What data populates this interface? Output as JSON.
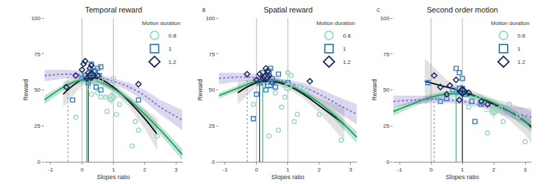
{
  "chart_data": [
    {
      "type": "scatter",
      "title": "Temporal reward",
      "x_label": "Slopes ratio",
      "y_label": "Reward",
      "xlim": [
        -1.2,
        3.2
      ],
      "ylim": [
        0,
        100
      ],
      "xticks": [
        -1,
        0,
        1,
        2,
        3
      ],
      "yticks": [
        0,
        25,
        50,
        75,
        100
      ],
      "grid": false,
      "legend": "top right",
      "legend_title": "Motion duration",
      "series": [
        {
          "name": "0.8",
          "color": "#9fd8c4",
          "marker": "circle",
          "x": [
            1.0,
            0.9,
            1.2,
            0.8,
            0.6,
            0.5,
            1.1,
            -0.2,
            1.6,
            0.4,
            0.3,
            1.8,
            1.7,
            2.4,
            0.6,
            0.75,
            1.0,
            0.2
          ],
          "values": [
            45,
            43,
            40,
            35,
            45,
            48,
            33,
            31,
            11,
            55,
            47,
            22,
            28,
            18,
            57,
            45,
            58,
            52
          ],
          "mean": {
            "x": 0.95,
            "y": 45,
            "x_error": 0.25,
            "y_error": 5
          }
        },
        {
          "name": "1",
          "color": "#3f86c4",
          "marker": "square",
          "x": [
            -0.3,
            0.5,
            0.6,
            0.3,
            0.0,
            0.2,
            0.4,
            0.45,
            0.6,
            0.55,
            1.8,
            0.3,
            0.1
          ],
          "values": [
            43,
            65,
            66,
            62,
            58,
            55,
            63,
            52,
            50,
            60,
            43,
            68,
            60
          ],
          "mean": {
            "x": 0.35,
            "y": 62,
            "x_error": 0.1,
            "y_error": 3
          }
        },
        {
          "name": "1.2",
          "color": "#1b2a5e",
          "marker": "diamond",
          "x": [
            -0.5,
            -0.2,
            0.1,
            0.2,
            0.3,
            0.05,
            0.0,
            0.4,
            1.8,
            0.15,
            0.5,
            0.25
          ],
          "values": [
            52,
            60,
            70,
            62,
            67,
            68,
            64,
            63,
            54,
            58,
            60,
            65
          ],
          "mean": {
            "x": 0.3,
            "y": 60,
            "x_error": 0.1,
            "y_error": 3
          }
        }
      ],
      "curves": [
        {
          "color": "#000000",
          "line_style": "solid",
          "x": [
            -0.6,
            0,
            0.5,
            1,
            1.5,
            2,
            2.4
          ],
          "values": [
            47,
            57,
            58,
            52,
            42,
            30,
            19
          ],
          "lower": [
            38,
            53,
            55,
            49,
            38,
            23,
            8
          ],
          "upper": [
            56,
            61,
            61,
            55,
            46,
            37,
            30
          ]
        },
        {
          "color": "#1a9e5f",
          "line_style": "solid",
          "x": [
            -1.2,
            -0.5,
            0,
            0.5,
            1,
            1.5,
            2,
            2.5,
            3.2
          ],
          "values": [
            43,
            53,
            57,
            56,
            51,
            43,
            33,
            22,
            5
          ],
          "lower": [
            40,
            51,
            55,
            54,
            49,
            41,
            30,
            19,
            1
          ],
          "upper": [
            46,
            55,
            59,
            58,
            53,
            45,
            36,
            25,
            9
          ]
        },
        {
          "color": "#7b6fc4",
          "line_style": "dot",
          "x": [
            -1.2,
            -0.5,
            0,
            0.5,
            1,
            1.5,
            2,
            2.5,
            3.2
          ],
          "values": [
            60,
            61,
            60.5,
            59,
            56,
            52,
            46,
            38,
            29
          ],
          "lower": [
            56,
            58,
            58,
            57,
            54,
            49,
            42,
            33,
            22
          ],
          "upper": [
            64,
            64,
            63,
            61,
            58,
            55,
            50,
            43,
            36
          ]
        }
      ],
      "vlines": [
        {
          "x": 0,
          "y_end": 100,
          "color": "#b3b3b3",
          "line_style": "solid"
        },
        {
          "x": 1,
          "y_end": 100,
          "color": "#b3b3b3",
          "line_style": "solid"
        },
        {
          "x": -0.45,
          "y_end": 61,
          "color": "#888888",
          "line_style": "dot"
        },
        {
          "x": 0.2,
          "y_end": 58,
          "color": "#000000",
          "line_style": "solid"
        },
        {
          "x": 0.15,
          "y_end": 57,
          "color": "#1a9e5f",
          "line_style": "solid"
        }
      ]
    },
    {
      "type": "scatter",
      "title": "Spatial reward",
      "panel": "B",
      "x_label": "Slopes ratio",
      "y_label": "Reward",
      "xlim": [
        -1.2,
        3.2
      ],
      "ylim": [
        0,
        100
      ],
      "xticks": [
        -1,
        0,
        1,
        2,
        3
      ],
      "yticks": [
        0,
        25,
        50,
        75,
        100
      ],
      "grid": false,
      "legend": "top right",
      "legend_title": "Motion duration",
      "series": [
        {
          "name": "0.8",
          "color": "#9fd8c4",
          "marker": "circle",
          "x": [
            1.0,
            1.1,
            0.9,
            0.5,
            -0.1,
            1.2,
            1.3,
            0.7,
            1.6,
            0.4,
            0.8,
            1.4,
            2.0,
            2.7,
            0.6
          ],
          "values": [
            62,
            60,
            45,
            55,
            40,
            28,
            33,
            22,
            50,
            18,
            38,
            52,
            33,
            15,
            48
          ],
          "mean": {
            "x": 1.0,
            "y": 52,
            "x_error": 0.2,
            "y_error": 5
          }
        },
        {
          "name": "1",
          "color": "#3f86c4",
          "marker": "square",
          "x": [
            -0.1,
            0.0,
            0.2,
            0.4,
            0.5,
            0.6,
            0.3,
            0.7,
            0.1,
            1.0,
            0.45
          ],
          "values": [
            30,
            47,
            62,
            63,
            58,
            52,
            50,
            61,
            55,
            55,
            65
          ],
          "mean": {
            "x": 0.4,
            "y": 54,
            "x_error": 0.1,
            "y_error": 3
          }
        },
        {
          "name": "1.2",
          "color": "#1b2a5e",
          "marker": "diamond",
          "x": [
            -0.3,
            0.1,
            0.3,
            0.4,
            0.2,
            0.5,
            0.0,
            0.35,
            1.7
          ],
          "values": [
            61,
            61,
            65,
            60,
            58,
            55,
            57,
            63,
            56
          ],
          "mean": {
            "x": 0.3,
            "y": 59,
            "x_error": 0.1,
            "y_error": 3
          }
        }
      ],
      "curves": [
        {
          "color": "#000000",
          "line_style": "solid",
          "x": [
            -0.6,
            0,
            0.5,
            1,
            1.5,
            2,
            2.5,
            2.8
          ],
          "values": [
            48,
            55,
            56,
            53,
            47,
            39,
            31,
            26
          ],
          "lower": [
            40,
            52,
            54,
            51,
            44,
            34,
            22,
            14
          ],
          "upper": [
            56,
            58,
            58,
            55,
            50,
            44,
            40,
            38
          ]
        },
        {
          "color": "#1a9e5f",
          "line_style": "solid",
          "x": [
            -1.2,
            -0.5,
            0,
            0.5,
            1,
            1.5,
            2,
            2.5,
            3.2
          ],
          "values": [
            46,
            52,
            56,
            57,
            54,
            48,
            41,
            32,
            17
          ],
          "lower": [
            44,
            50,
            54,
            55,
            52,
            46,
            39,
            29,
            13
          ],
          "upper": [
            48,
            54,
            58,
            59,
            56,
            50,
            43,
            35,
            21
          ]
        },
        {
          "color": "#7b6fc4",
          "line_style": "dot",
          "x": [
            -1.2,
            -0.5,
            0,
            0.5,
            1,
            1.5,
            2,
            2.5,
            3.2
          ],
          "values": [
            58,
            59,
            58.5,
            57.5,
            55,
            52,
            47,
            41,
            33
          ],
          "lower": [
            54,
            56,
            56,
            55.5,
            53,
            49,
            43,
            36,
            26
          ],
          "upper": [
            62,
            62,
            61,
            59.5,
            57,
            55,
            51,
            46,
            40
          ]
        }
      ],
      "vlines": [
        {
          "x": 0,
          "y_end": 100,
          "color": "#b3b3b3",
          "line_style": "solid"
        },
        {
          "x": 1,
          "y_end": 100,
          "color": "#b3b3b3",
          "line_style": "solid"
        },
        {
          "x": -0.3,
          "y_end": 59,
          "color": "#888888",
          "line_style": "dot"
        },
        {
          "x": 0.1,
          "y_end": 55,
          "color": "#000000",
          "line_style": "solid"
        },
        {
          "x": 0.2,
          "y_end": 56,
          "color": "#1a9e5f",
          "line_style": "solid"
        }
      ]
    },
    {
      "type": "scatter",
      "title": "Second order motion",
      "panel": "C",
      "x_label": "Slopes ratio",
      "y_label": "Reward",
      "xlim": [
        -1.2,
        3.2
      ],
      "ylim": [
        0,
        100
      ],
      "xticks": [
        -1,
        0,
        1,
        2,
        3
      ],
      "yticks": [
        0,
        25,
        50,
        75,
        100
      ],
      "grid": false,
      "legend": "top right",
      "legend_title": "Motion duration",
      "series": [
        {
          "name": "0.8",
          "color": "#9fd8c4",
          "marker": "circle",
          "x": [
            1.5,
            2.0,
            1.8,
            2.3,
            2.5,
            1.6,
            2.2,
            3.0,
            1.2,
            2.8
          ],
          "values": [
            45,
            35,
            20,
            28,
            40,
            42,
            37,
            14,
            38,
            32
          ],
          "mean": {
            "x": 2.0,
            "y": 35,
            "x_error": 0.3,
            "y_error": 5
          }
        },
        {
          "name": "1",
          "color": "#3f86c4",
          "marker": "square",
          "x": [
            -0.1,
            0.8,
            0.9,
            1.0,
            1.3,
            1.4,
            0.7,
            1.6,
            0.5,
            1.1,
            0.3
          ],
          "values": [
            55,
            65,
            62,
            58,
            42,
            28,
            50,
            40,
            44,
            47,
            42
          ],
          "mean": {
            "x": 0.95,
            "y": 50,
            "x_error": 0.2,
            "y_error": 4
          }
        },
        {
          "name": "1.2",
          "color": "#1b2a5e",
          "marker": "diamond",
          "x": [
            0.1,
            0.3,
            0.6,
            0.8,
            1.0,
            1.2,
            0.5,
            1.6,
            1.8,
            0.9
          ],
          "values": [
            60,
            52,
            53,
            57,
            50,
            48,
            47,
            42,
            40,
            43
          ],
          "mean": {
            "x": 1.0,
            "y": 49,
            "x_error": 0.2,
            "y_error": 4
          }
        }
      ],
      "curves": [
        {
          "color": "#000000",
          "line_style": "solid",
          "x": [
            -0.2,
            0.5,
            1,
            1.5,
            2,
            2.5,
            3,
            3.2
          ],
          "values": [
            56,
            52,
            49,
            45,
            40,
            35,
            28,
            24
          ],
          "lower": [
            40,
            47,
            46,
            42,
            36,
            29,
            19,
            13
          ],
          "upper": [
            72,
            57,
            52,
            48,
            44,
            41,
            37,
            35
          ]
        },
        {
          "color": "#1a9e5f",
          "line_style": "solid",
          "x": [
            -1.2,
            -0.5,
            0,
            0.5,
            1,
            1.5,
            2,
            2.5,
            3.2
          ],
          "values": [
            35,
            41,
            45,
            47,
            47,
            45,
            41,
            35,
            25
          ],
          "lower": [
            32,
            39,
            43,
            45,
            45,
            43,
            39,
            32,
            21
          ],
          "upper": [
            38,
            43,
            47,
            49,
            49,
            47,
            43,
            38,
            29
          ]
        },
        {
          "color": "#7b6fc4",
          "line_style": "dot",
          "x": [
            -1.2,
            -0.5,
            0,
            0.5,
            1,
            1.5,
            2,
            2.5,
            3.2
          ],
          "values": [
            42,
            43,
            43.5,
            43,
            42,
            40,
            38,
            35,
            31
          ],
          "lower": [
            38,
            40,
            41,
            41,
            40,
            38,
            35,
            31,
            25
          ],
          "upper": [
            46,
            46,
            46,
            45,
            44,
            42,
            41,
            39,
            37
          ]
        }
      ],
      "vlines": [
        {
          "x": 0,
          "y_end": 100,
          "color": "#b3b3b3",
          "line_style": "solid"
        },
        {
          "x": 1,
          "y_end": 100,
          "color": "#b3b3b3",
          "line_style": "solid"
        },
        {
          "x": 0.1,
          "y_end": 43.5,
          "color": "#888888",
          "line_style": "dot"
        },
        {
          "x": 1.0,
          "y_end": 49,
          "color": "#000000",
          "line_style": "solid"
        },
        {
          "x": 0.8,
          "y_end": 47,
          "color": "#1a9e5f",
          "line_style": "solid"
        }
      ]
    }
  ]
}
